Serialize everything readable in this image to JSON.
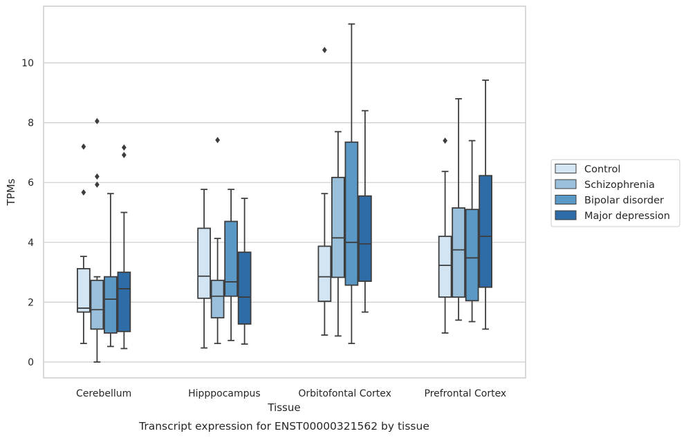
{
  "chart_data": {
    "type": "boxplot",
    "caption": "Transcript expression for ENST00000321562 by tissue",
    "xlabel": "Tissue",
    "ylabel": "TPMs",
    "ylim": [
      -0.55,
      11.9
    ],
    "yticks": [
      0,
      2,
      4,
      6,
      8,
      10
    ],
    "grid": "horizontal",
    "legend_position": "right",
    "categories": [
      "Cerebellum",
      "Hipppocampus",
      "Orbitofontal Cortex",
      "Prefrontal Cortex"
    ],
    "series": [
      {
        "name": "Control",
        "color": "#d3e4f3",
        "boxes": [
          {
            "whisker_low": 0.62,
            "q1": 1.67,
            "median": 1.8,
            "q3": 3.12,
            "whisker_high": 3.53,
            "outliers": [
              5.67,
              7.2
            ]
          },
          {
            "whisker_low": 0.47,
            "q1": 2.13,
            "median": 2.87,
            "q3": 4.47,
            "whisker_high": 5.77,
            "outliers": []
          },
          {
            "whisker_low": 0.9,
            "q1": 2.03,
            "median": 2.85,
            "q3": 3.87,
            "whisker_high": 5.63,
            "outliers": [
              10.43
            ]
          },
          {
            "whisker_low": 0.97,
            "q1": 2.17,
            "median": 3.23,
            "q3": 4.2,
            "whisker_high": 6.37,
            "outliers": [
              7.4
            ]
          }
        ]
      },
      {
        "name": "Schizophrenia",
        "color": "#9ac0dc",
        "boxes": [
          {
            "whisker_low": 0.0,
            "q1": 1.1,
            "median": 1.75,
            "q3": 2.73,
            "whisker_high": 2.85,
            "outliers": [
              5.93,
              6.2,
              8.05
            ]
          },
          {
            "whisker_low": 0.62,
            "q1": 1.48,
            "median": 2.2,
            "q3": 2.73,
            "whisker_high": 4.13,
            "outliers": [
              7.42
            ]
          },
          {
            "whisker_low": 0.87,
            "q1": 2.83,
            "median": 4.15,
            "q3": 6.17,
            "whisker_high": 7.7,
            "outliers": []
          },
          {
            "whisker_low": 1.4,
            "q1": 2.17,
            "median": 3.75,
            "q3": 5.15,
            "whisker_high": 8.8,
            "outliers": []
          }
        ]
      },
      {
        "name": "Bipolar disorder",
        "color": "#5a98c6",
        "boxes": [
          {
            "whisker_low": 0.52,
            "q1": 0.97,
            "median": 2.1,
            "q3": 2.85,
            "whisker_high": 5.63,
            "outliers": []
          },
          {
            "whisker_low": 0.72,
            "q1": 2.2,
            "median": 2.68,
            "q3": 4.7,
            "whisker_high": 5.77,
            "outliers": []
          },
          {
            "whisker_low": 0.62,
            "q1": 2.57,
            "median": 4.0,
            "q3": 7.35,
            "whisker_high": 11.3,
            "outliers": []
          },
          {
            "whisker_low": 1.35,
            "q1": 2.05,
            "median": 3.48,
            "q3": 5.1,
            "whisker_high": 7.4,
            "outliers": []
          }
        ]
      },
      {
        "name": "Major depression",
        "color": "#2e6ca7",
        "boxes": [
          {
            "whisker_low": 0.45,
            "q1": 1.02,
            "median": 2.45,
            "q3": 3.0,
            "whisker_high": 5.0,
            "outliers": [
              6.92,
              7.17
            ]
          },
          {
            "whisker_low": 0.6,
            "q1": 1.27,
            "median": 2.17,
            "q3": 3.67,
            "whisker_high": 5.47,
            "outliers": []
          },
          {
            "whisker_low": 1.67,
            "q1": 2.7,
            "median": 3.95,
            "q3": 5.55,
            "whisker_high": 8.4,
            "outliers": []
          },
          {
            "whisker_low": 1.1,
            "q1": 2.5,
            "median": 4.2,
            "q3": 6.23,
            "whisker_high": 9.42,
            "outliers": []
          }
        ]
      }
    ]
  }
}
